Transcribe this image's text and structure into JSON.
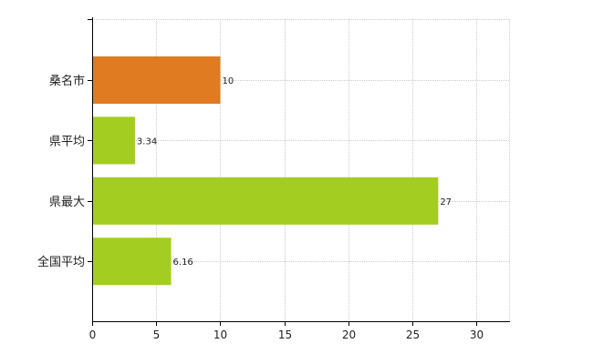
{
  "chart_data": {
    "type": "bar",
    "orientation": "horizontal",
    "categories": [
      "桑名市",
      "県平均",
      "県最大",
      "全国平均"
    ],
    "values": [
      10,
      3.34,
      27,
      6.16
    ],
    "data_labels": [
      "10",
      "3.34",
      "27",
      "6.16"
    ],
    "bar_colors": [
      "#e07b22",
      "#a3cd20",
      "#a3cd20",
      "#a3cd20"
    ],
    "xlim": [
      0,
      32.6
    ],
    "x_ticks": [
      0,
      5,
      10,
      15,
      20,
      25,
      30
    ],
    "x_tick_labels": [
      "0",
      "5",
      "10",
      "15",
      "20",
      "25",
      "30"
    ],
    "grid": true,
    "grid_style": "dotted",
    "title": "",
    "xlabel": "",
    "ylabel": ""
  },
  "colors": {
    "highlight": "#e07b22",
    "default_bar": "#a3cd20",
    "grid": "#cccccc",
    "axis": "#000000"
  }
}
